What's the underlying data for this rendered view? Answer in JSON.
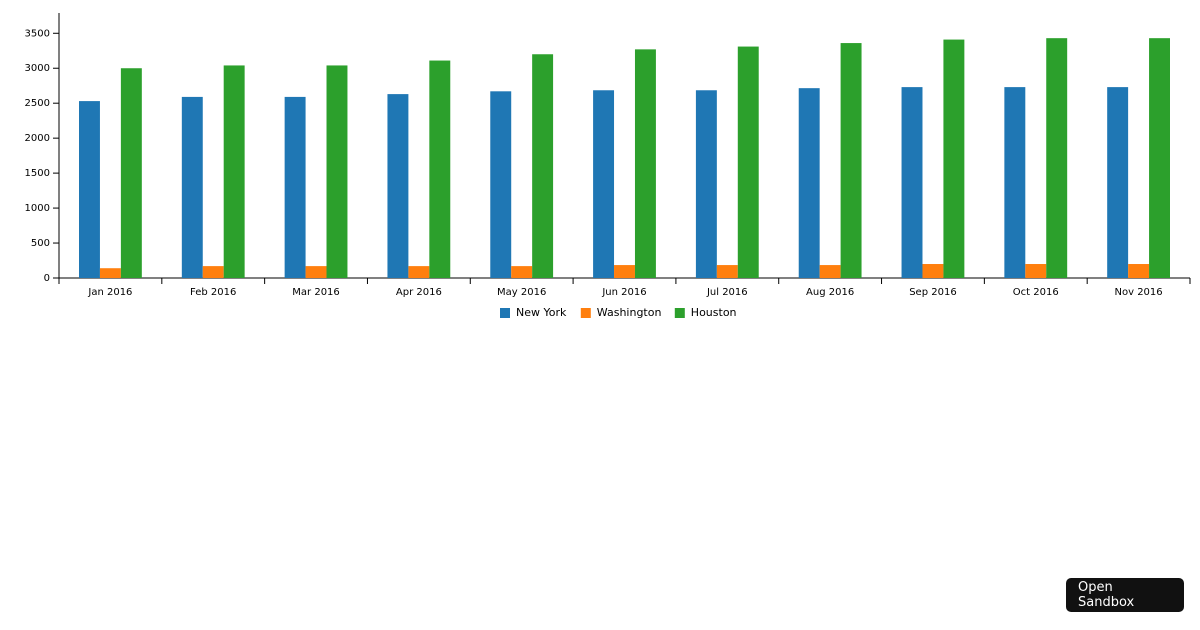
{
  "chart_data": {
    "type": "bar",
    "categories": [
      "Jan 2016",
      "Feb 2016",
      "Mar 2016",
      "Apr 2016",
      "May 2016",
      "Jun 2016",
      "Jul 2016",
      "Aug 2016",
      "Sep 2016",
      "Oct 2016",
      "Nov 2016"
    ],
    "series": [
      {
        "name": "New York",
        "color": "#1f77b4",
        "values": [
          2530,
          2590,
          2590,
          2630,
          2670,
          2685,
          2685,
          2715,
          2730,
          2730,
          2730
        ]
      },
      {
        "name": "Washington",
        "color": "#ff7f0e",
        "values": [
          140,
          170,
          170,
          170,
          170,
          185,
          185,
          185,
          200,
          200,
          200
        ]
      },
      {
        "name": "Houston",
        "color": "#2ca02c",
        "values": [
          3000,
          3040,
          3040,
          3110,
          3200,
          3270,
          3310,
          3360,
          3410,
          3430,
          3430
        ]
      }
    ],
    "ylim": [
      0,
      3790
    ],
    "yticks": [
      0,
      500,
      1000,
      1500,
      2000,
      2500,
      3000,
      3500
    ],
    "legend": "bottom"
  },
  "sandbox_button": "Open Sandbox"
}
